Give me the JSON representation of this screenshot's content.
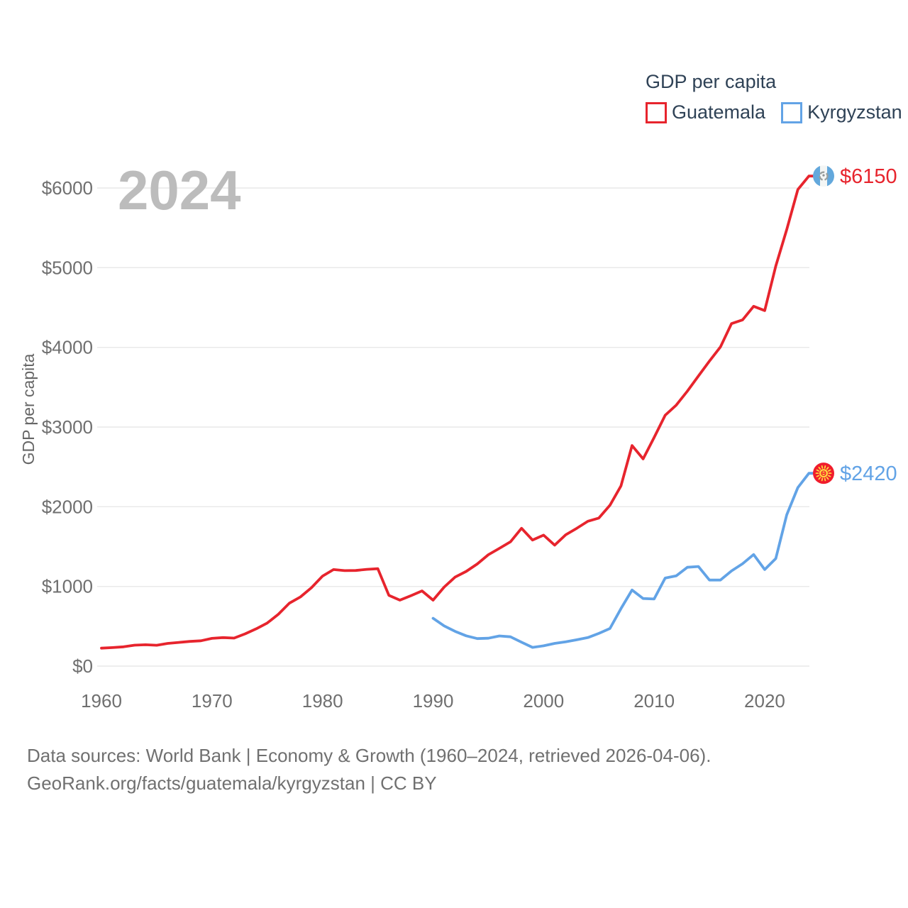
{
  "watermark": "2024",
  "legend": {
    "title": "GDP per capita",
    "items": [
      {
        "label": "Guatemala",
        "color": "#e7242d"
      },
      {
        "label": "Kyrgyzstan",
        "color": "#62a3e6"
      }
    ]
  },
  "footer": {
    "line1": "Data sources: World Bank | Economy & Growth (1960–2024, retrieved 2026-04-06).",
    "line2": "GeoRank.org/facts/guatemala/kyrgyzstan | CC BY"
  },
  "chart_data": {
    "type": "line",
    "title": "GDP per capita",
    "ylabel": "GDP per capita",
    "xlabel": "",
    "grid": "horizontal",
    "legend_position": "top-right",
    "x_range": [
      1960,
      2024
    ],
    "y_range": [
      0,
      6400
    ],
    "y_ticks": [
      {
        "value": 0,
        "label": "$0"
      },
      {
        "value": 1000,
        "label": "$1000"
      },
      {
        "value": 2000,
        "label": "$2000"
      },
      {
        "value": 3000,
        "label": "$3000"
      },
      {
        "value": 4000,
        "label": "$4000"
      },
      {
        "value": 5000,
        "label": "$5000"
      },
      {
        "value": 6000,
        "label": "$6000"
      }
    ],
    "x_ticks": [
      {
        "value": 1960,
        "label": "1960"
      },
      {
        "value": 1970,
        "label": "1970"
      },
      {
        "value": 1980,
        "label": "1980"
      },
      {
        "value": 1990,
        "label": "1990"
      },
      {
        "value": 2000,
        "label": "2000"
      },
      {
        "value": 2010,
        "label": "2010"
      },
      {
        "value": 2020,
        "label": "2020"
      }
    ],
    "series": [
      {
        "name": "Guatemala",
        "color": "#e7242d",
        "flag_icon": "guatemala-flag",
        "end_label": "$6150",
        "start_year": 1960,
        "values": [
          225,
          232,
          242,
          263,
          268,
          262,
          285,
          297,
          310,
          318,
          348,
          358,
          352,
          405,
          468,
          540,
          650,
          790,
          868,
          985,
          1130,
          1212,
          1198,
          1200,
          1214,
          1222,
          888,
          828,
          884,
          944,
          828,
          992,
          1118,
          1188,
          1282,
          1398,
          1478,
          1560,
          1730,
          1582,
          1643,
          1518,
          1648,
          1730,
          1818,
          1858,
          2018,
          2262,
          2768,
          2600,
          2868,
          3148,
          3275,
          3450,
          3640,
          3828,
          4005,
          4298,
          4345,
          4515,
          4462,
          5020,
          5480,
          5980,
          6150
        ]
      },
      {
        "name": "Kyrgyzstan",
        "color": "#62a3e6",
        "flag_icon": "kyrgyzstan-flag",
        "end_label": "$2420",
        "start_year": 1990,
        "values": [
          600,
          505,
          435,
          380,
          345,
          350,
          378,
          368,
          300,
          235,
          255,
          285,
          305,
          330,
          358,
          410,
          472,
          722,
          955,
          848,
          842,
          1105,
          1132,
          1240,
          1250,
          1080,
          1080,
          1195,
          1285,
          1400,
          1212,
          1350,
          1900,
          2240,
          2420
        ]
      }
    ]
  }
}
